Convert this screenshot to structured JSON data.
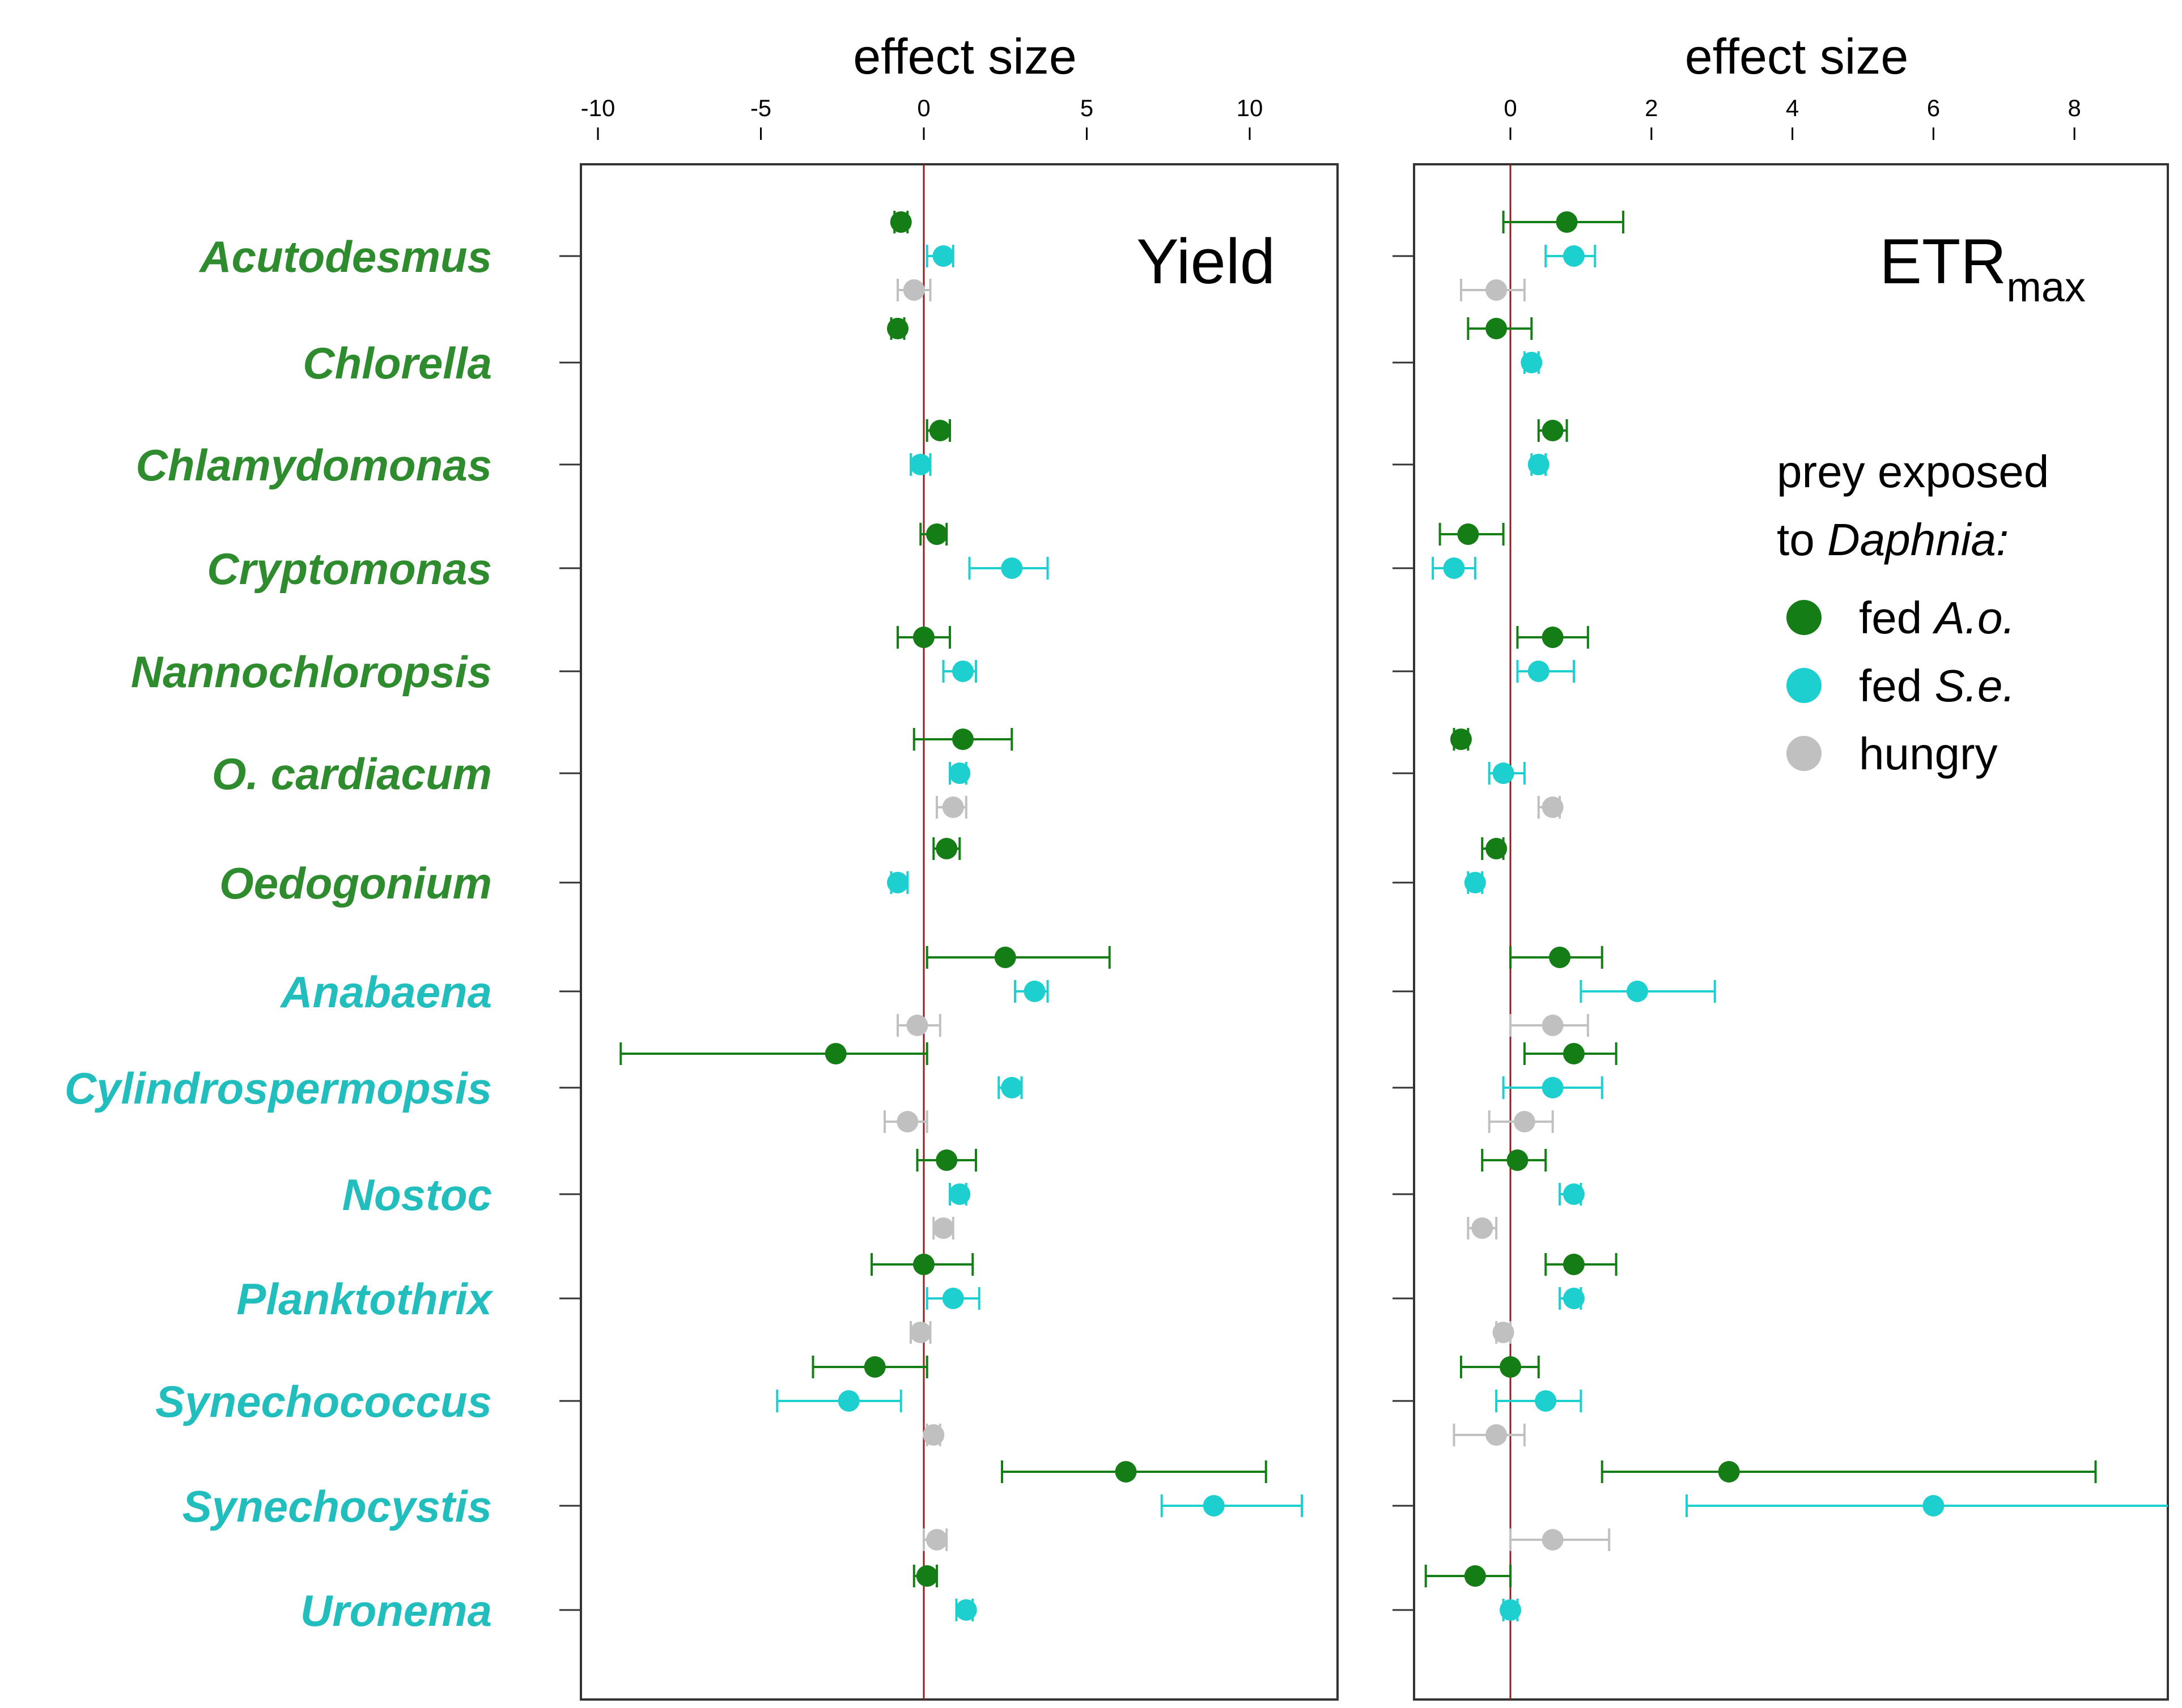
{
  "chart_data": {
    "type": "forest",
    "colors": {
      "fed_Ao": "#157d15",
      "fed_Se": "#1ecfcf",
      "hungry": "#c0c0c0",
      "green_taxa_label": "#2e8b2e",
      "cyano_taxa_label": "#22bdbd",
      "zero_line": "#8b2020"
    },
    "taxa": [
      {
        "name": "Acutodesmus",
        "group": "green"
      },
      {
        "name": "Chlorella",
        "group": "green"
      },
      {
        "name": "Chlamydomonas",
        "group": "green"
      },
      {
        "name": "Cryptomonas",
        "group": "green"
      },
      {
        "name": "Nannochloropsis",
        "group": "green"
      },
      {
        "name": "O. cardiacum",
        "group": "green"
      },
      {
        "name": "Oedogonium",
        "group": "green"
      },
      {
        "name": "Anabaena",
        "group": "cyano"
      },
      {
        "name": "Cylindrospermopsis",
        "group": "cyano"
      },
      {
        "name": "Nostoc",
        "group": "cyano"
      },
      {
        "name": "Planktothrix",
        "group": "cyano"
      },
      {
        "name": "Synechococcus",
        "group": "cyano"
      },
      {
        "name": "Synechocystis",
        "group": "cyano"
      },
      {
        "name": "Uronema",
        "group": "cyano"
      }
    ],
    "legend": {
      "title_line1": "prey exposed",
      "title_line2_prefix": "to ",
      "title_line2_italic": "Daphnia:",
      "entries": [
        {
          "key": "fed_Ao",
          "prefix": "fed ",
          "italic": "A.o."
        },
        {
          "key": "fed_Se",
          "prefix": "fed ",
          "italic": "S.e."
        },
        {
          "key": "hungry",
          "prefix": "hungry",
          "italic": ""
        }
      ]
    },
    "panels": [
      {
        "id": "yield",
        "label": "Yield",
        "label_sub": "",
        "xlabel": "effect size",
        "xlim": [
          -10.6,
          12.7
        ],
        "ticks": [
          -10,
          -5,
          0,
          5,
          10
        ],
        "points": [
          {
            "taxon": 0,
            "series": "fed_Ao",
            "value": -0.7,
            "lo": -0.9,
            "hi": -0.5
          },
          {
            "taxon": 0,
            "series": "fed_Se",
            "value": 0.6,
            "lo": 0.1,
            "hi": 0.9
          },
          {
            "taxon": 0,
            "series": "hungry",
            "value": -0.3,
            "lo": -0.8,
            "hi": 0.2
          },
          {
            "taxon": 1,
            "series": "fed_Ao",
            "value": -0.8,
            "lo": -1.0,
            "hi": -0.6
          },
          {
            "taxon": 2,
            "series": "fed_Ao",
            "value": 0.5,
            "lo": 0.1,
            "hi": 0.8
          },
          {
            "taxon": 2,
            "series": "fed_Se",
            "value": -0.1,
            "lo": -0.4,
            "hi": 0.2
          },
          {
            "taxon": 3,
            "series": "fed_Ao",
            "value": 0.4,
            "lo": -0.1,
            "hi": 0.7
          },
          {
            "taxon": 3,
            "series": "fed_Se",
            "value": 2.7,
            "lo": 1.4,
            "hi": 3.8
          },
          {
            "taxon": 4,
            "series": "fed_Ao",
            "value": 0.0,
            "lo": -0.8,
            "hi": 0.8
          },
          {
            "taxon": 4,
            "series": "fed_Se",
            "value": 1.2,
            "lo": 0.6,
            "hi": 1.6
          },
          {
            "taxon": 5,
            "series": "fed_Ao",
            "value": 1.2,
            "lo": -0.3,
            "hi": 2.7
          },
          {
            "taxon": 5,
            "series": "fed_Se",
            "value": 1.1,
            "lo": 0.8,
            "hi": 1.3
          },
          {
            "taxon": 5,
            "series": "hungry",
            "value": 0.9,
            "lo": 0.4,
            "hi": 1.3
          },
          {
            "taxon": 6,
            "series": "fed_Ao",
            "value": 0.7,
            "lo": 0.3,
            "hi": 1.1
          },
          {
            "taxon": 6,
            "series": "fed_Se",
            "value": -0.8,
            "lo": -1.0,
            "hi": -0.5
          },
          {
            "taxon": 7,
            "series": "fed_Ao",
            "value": 2.5,
            "lo": 0.1,
            "hi": 5.7
          },
          {
            "taxon": 7,
            "series": "fed_Se",
            "value": 3.4,
            "lo": 2.8,
            "hi": 3.8
          },
          {
            "taxon": 7,
            "series": "hungry",
            "value": -0.2,
            "lo": -0.8,
            "hi": 0.5
          },
          {
            "taxon": 8,
            "series": "fed_Ao",
            "value": -2.7,
            "lo": -9.3,
            "hi": 0.1
          },
          {
            "taxon": 8,
            "series": "fed_Se",
            "value": 2.7,
            "lo": 2.3,
            "hi": 3.0
          },
          {
            "taxon": 8,
            "series": "hungry",
            "value": -0.5,
            "lo": -1.2,
            "hi": 0.1
          },
          {
            "taxon": 9,
            "series": "fed_Ao",
            "value": 0.7,
            "lo": -0.2,
            "hi": 1.6
          },
          {
            "taxon": 9,
            "series": "fed_Se",
            "value": 1.1,
            "lo": 0.8,
            "hi": 1.3
          },
          {
            "taxon": 9,
            "series": "hungry",
            "value": 0.6,
            "lo": 0.3,
            "hi": 0.9
          },
          {
            "taxon": 10,
            "series": "fed_Ao",
            "value": 0.0,
            "lo": -1.6,
            "hi": 1.5
          },
          {
            "taxon": 10,
            "series": "fed_Se",
            "value": 0.9,
            "lo": 0.1,
            "hi": 1.7
          },
          {
            "taxon": 10,
            "series": "hungry",
            "value": -0.1,
            "lo": -0.4,
            "hi": 0.2
          },
          {
            "taxon": 11,
            "series": "fed_Ao",
            "value": -1.5,
            "lo": -3.4,
            "hi": 0.1
          },
          {
            "taxon": 11,
            "series": "fed_Se",
            "value": -2.3,
            "lo": -4.5,
            "hi": -0.7
          },
          {
            "taxon": 11,
            "series": "hungry",
            "value": 0.3,
            "lo": 0.1,
            "hi": 0.5
          },
          {
            "taxon": 12,
            "series": "fed_Ao",
            "value": 6.2,
            "lo": 2.4,
            "hi": 10.5
          },
          {
            "taxon": 12,
            "series": "fed_Se",
            "value": 8.9,
            "lo": 7.3,
            "hi": 11.6
          },
          {
            "taxon": 12,
            "series": "hungry",
            "value": 0.4,
            "lo": 0.0,
            "hi": 0.7
          },
          {
            "taxon": 13,
            "series": "fed_Ao",
            "value": 0.1,
            "lo": -0.3,
            "hi": 0.4
          },
          {
            "taxon": 13,
            "series": "fed_Se",
            "value": 1.3,
            "lo": 1.0,
            "hi": 1.5
          }
        ]
      },
      {
        "id": "etr",
        "label": "ETR",
        "label_sub": "max",
        "xlabel": "effect size",
        "xlim": [
          -1.35,
          9.4
        ],
        "ticks": [
          0,
          2,
          4,
          6,
          8
        ],
        "points": [
          {
            "taxon": 0,
            "series": "fed_Ao",
            "value": 0.8,
            "lo": -0.1,
            "hi": 1.6
          },
          {
            "taxon": 0,
            "series": "fed_Se",
            "value": 0.9,
            "lo": 0.5,
            "hi": 1.2
          },
          {
            "taxon": 0,
            "series": "hungry",
            "value": -0.2,
            "lo": -0.7,
            "hi": 0.2
          },
          {
            "taxon": 1,
            "series": "fed_Ao",
            "value": -0.2,
            "lo": -0.6,
            "hi": 0.3
          },
          {
            "taxon": 1,
            "series": "fed_Se",
            "value": 0.3,
            "lo": 0.2,
            "hi": 0.4
          },
          {
            "taxon": 2,
            "series": "fed_Ao",
            "value": 0.6,
            "lo": 0.4,
            "hi": 0.8
          },
          {
            "taxon": 2,
            "series": "fed_Se",
            "value": 0.4,
            "lo": 0.3,
            "hi": 0.5
          },
          {
            "taxon": 3,
            "series": "fed_Ao",
            "value": -0.6,
            "lo": -1.0,
            "hi": -0.1
          },
          {
            "taxon": 3,
            "series": "fed_Se",
            "value": -0.8,
            "lo": -1.1,
            "hi": -0.5
          },
          {
            "taxon": 4,
            "series": "fed_Ao",
            "value": 0.6,
            "lo": 0.1,
            "hi": 1.1
          },
          {
            "taxon": 4,
            "series": "fed_Se",
            "value": 0.4,
            "lo": 0.1,
            "hi": 0.9
          },
          {
            "taxon": 5,
            "series": "fed_Ao",
            "value": -0.7,
            "lo": -0.8,
            "hi": -0.6
          },
          {
            "taxon": 5,
            "series": "fed_Se",
            "value": -0.1,
            "lo": -0.3,
            "hi": 0.2
          },
          {
            "taxon": 5,
            "series": "hungry",
            "value": 0.6,
            "lo": 0.4,
            "hi": 0.7
          },
          {
            "taxon": 6,
            "series": "fed_Ao",
            "value": -0.2,
            "lo": -0.4,
            "hi": -0.1
          },
          {
            "taxon": 6,
            "series": "fed_Se",
            "value": -0.5,
            "lo": -0.6,
            "hi": -0.4
          },
          {
            "taxon": 7,
            "series": "fed_Ao",
            "value": 0.7,
            "lo": 0.0,
            "hi": 1.3
          },
          {
            "taxon": 7,
            "series": "fed_Se",
            "value": 1.8,
            "lo": 1.0,
            "hi": 2.9
          },
          {
            "taxon": 7,
            "series": "hungry",
            "value": 0.6,
            "lo": 0.0,
            "hi": 1.1
          },
          {
            "taxon": 8,
            "series": "fed_Ao",
            "value": 0.9,
            "lo": 0.2,
            "hi": 1.5
          },
          {
            "taxon": 8,
            "series": "fed_Se",
            "value": 0.6,
            "lo": -0.1,
            "hi": 1.3
          },
          {
            "taxon": 8,
            "series": "hungry",
            "value": 0.2,
            "lo": -0.3,
            "hi": 0.6
          },
          {
            "taxon": 9,
            "series": "fed_Ao",
            "value": 0.1,
            "lo": -0.4,
            "hi": 0.5
          },
          {
            "taxon": 9,
            "series": "fed_Se",
            "value": 0.9,
            "lo": 0.7,
            "hi": 1.0
          },
          {
            "taxon": 9,
            "series": "hungry",
            "value": -0.4,
            "lo": -0.6,
            "hi": -0.2
          },
          {
            "taxon": 10,
            "series": "fed_Ao",
            "value": 0.9,
            "lo": 0.5,
            "hi": 1.5
          },
          {
            "taxon": 10,
            "series": "fed_Se",
            "value": 0.9,
            "lo": 0.7,
            "hi": 1.0
          },
          {
            "taxon": 10,
            "series": "hungry",
            "value": -0.1,
            "lo": -0.2,
            "hi": 0.0
          },
          {
            "taxon": 11,
            "series": "fed_Ao",
            "value": 0.0,
            "lo": -0.7,
            "hi": 0.4
          },
          {
            "taxon": 11,
            "series": "fed_Se",
            "value": 0.5,
            "lo": -0.2,
            "hi": 1.0
          },
          {
            "taxon": 11,
            "series": "hungry",
            "value": -0.2,
            "lo": -0.8,
            "hi": 0.2
          },
          {
            "taxon": 12,
            "series": "fed_Ao",
            "value": 3.1,
            "lo": 1.3,
            "hi": 8.3
          },
          {
            "taxon": 12,
            "series": "fed_Se",
            "value": 6.0,
            "lo": 2.5,
            "hi": 9.4
          },
          {
            "taxon": 12,
            "series": "hungry",
            "value": 0.6,
            "lo": 0.0,
            "hi": 1.4
          },
          {
            "taxon": 13,
            "series": "fed_Ao",
            "value": -0.5,
            "lo": -1.2,
            "hi": 0.0
          },
          {
            "taxon": 13,
            "series": "fed_Se",
            "value": 0.0,
            "lo": -0.1,
            "hi": 0.1
          }
        ]
      }
    ]
  }
}
